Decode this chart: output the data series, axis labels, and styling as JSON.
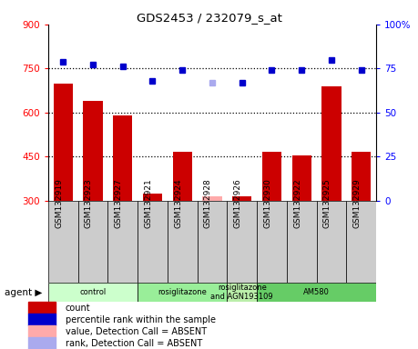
{
  "title": "GDS2453 / 232079_s_at",
  "samples": [
    "GSM132919",
    "GSM132923",
    "GSM132927",
    "GSM132921",
    "GSM132924",
    "GSM132928",
    "GSM132926",
    "GSM132930",
    "GSM132922",
    "GSM132925",
    "GSM132929"
  ],
  "bar_values": [
    700,
    640,
    590,
    325,
    465,
    315,
    315,
    465,
    455,
    690,
    465
  ],
  "bar_colors": [
    "#cc0000",
    "#cc0000",
    "#cc0000",
    "#cc0000",
    "#cc0000",
    "#ffaaaa",
    "#cc0000",
    "#cc0000",
    "#cc0000",
    "#cc0000",
    "#cc0000"
  ],
  "dot_values": [
    79,
    77,
    76,
    68,
    74,
    67,
    67,
    74,
    74,
    80,
    74
  ],
  "dot_colors": [
    "#0000cc",
    "#0000cc",
    "#0000cc",
    "#0000cc",
    "#0000cc",
    "#aaaaee",
    "#0000cc",
    "#0000cc",
    "#0000cc",
    "#0000cc",
    "#0000cc"
  ],
  "ylim_left": [
    300,
    900
  ],
  "ylim_right": [
    0,
    100
  ],
  "yticks_left": [
    300,
    450,
    600,
    750,
    900
  ],
  "yticks_right": [
    0,
    25,
    50,
    75,
    100
  ],
  "hlines": [
    450,
    600,
    750
  ],
  "agents": [
    {
      "label": "control",
      "start": 0,
      "end": 3,
      "color": "#ccffcc"
    },
    {
      "label": "rosiglitazone",
      "start": 3,
      "end": 6,
      "color": "#99ee99"
    },
    {
      "label": "rosiglitazone\nand AGN193109",
      "start": 6,
      "end": 7,
      "color": "#bbeeaa"
    },
    {
      "label": "AM580",
      "start": 7,
      "end": 11,
      "color": "#66cc66"
    }
  ],
  "legend_items": [
    {
      "color": "#cc0000",
      "label": "count"
    },
    {
      "color": "#0000cc",
      "label": "percentile rank within the sample"
    },
    {
      "color": "#ffaaaa",
      "label": "value, Detection Call = ABSENT"
    },
    {
      "color": "#aaaaee",
      "label": "rank, Detection Call = ABSENT"
    }
  ],
  "bar_width": 0.65,
  "bar_bottom": 300,
  "fig_width": 4.59,
  "fig_height": 3.84,
  "dpi": 100
}
